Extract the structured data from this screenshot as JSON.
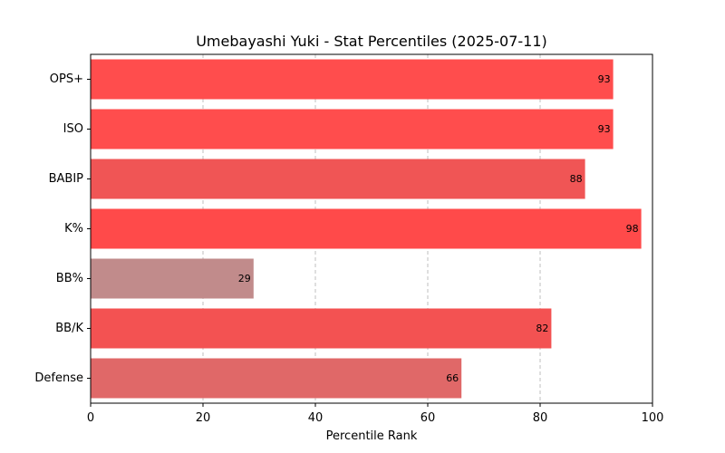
{
  "chart_data": {
    "type": "bar",
    "orientation": "horizontal",
    "title": "Umebayashi Yuki - Stat Percentiles (2025-07-11)",
    "xlabel": "Percentile Rank",
    "ylabel": "",
    "xlim": [
      0,
      100
    ],
    "xticks": [
      "0",
      "20",
      "40",
      "60",
      "80",
      "100"
    ],
    "grid": "vertical-dashed",
    "categories": [
      "OPS+",
      "ISO",
      "BABIP",
      "K%",
      "BB%",
      "BB/K",
      "Defense"
    ],
    "values": [
      93,
      93,
      88,
      98,
      29,
      82,
      66
    ],
    "labels": [
      "93",
      "93",
      "88",
      "98",
      "29",
      "82",
      "66"
    ],
    "colors": [
      "#ff4d4d",
      "#ff4d4d",
      "#f05555",
      "#ff4a4a",
      "#c18b8b",
      "#f35252",
      "#e06868"
    ]
  }
}
